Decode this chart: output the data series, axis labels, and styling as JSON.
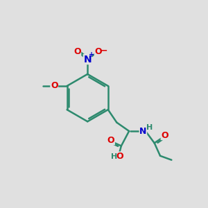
{
  "bg_color": "#e0e0e0",
  "bond_color": "#2d8a6e",
  "bond_width": 1.8,
  "atom_colors": {
    "O": "#dd0000",
    "N": "#0000cc",
    "H": "#2d8a6e",
    "C": "#2d8a6e"
  },
  "font_size_atom": 9,
  "fig_size": [
    3.0,
    3.0
  ],
  "dpi": 100
}
